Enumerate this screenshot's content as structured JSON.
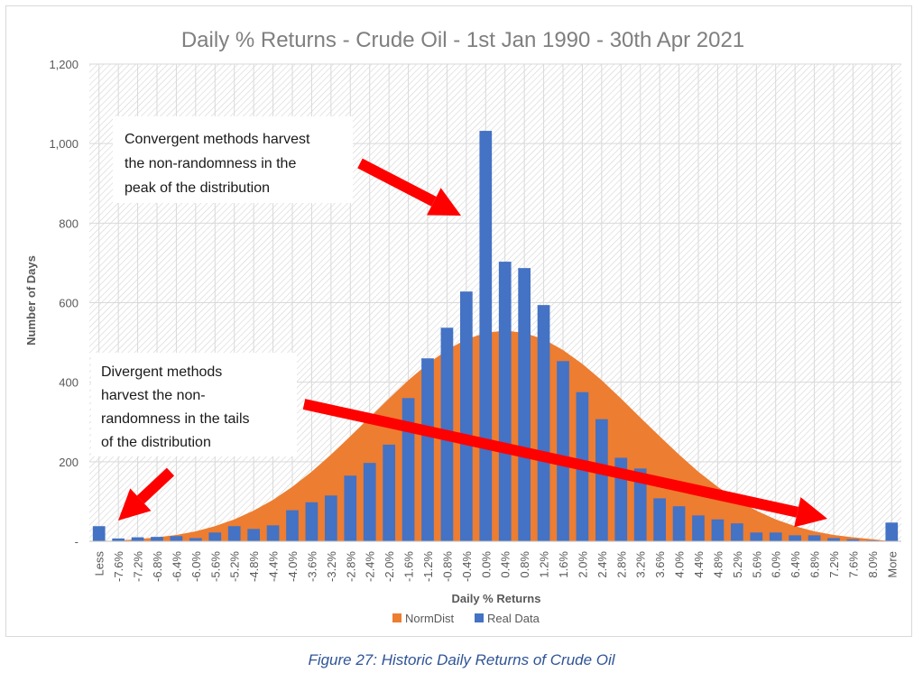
{
  "caption": "Figure 27: Historic Daily Returns of Crude Oil",
  "chart_data": {
    "type": "bar",
    "title": "Daily % Returns - Crude Oil  - 1st Jan 1990 - 30th Apr 2021",
    "xlabel": "Daily % Returns",
    "ylabel": "Number of Days",
    "ylim": [
      0,
      1200
    ],
    "yticks": [
      "-",
      "200",
      "400",
      "600",
      "800",
      "1,000",
      "1,200"
    ],
    "grid": true,
    "legend_position": "bottom",
    "categories": [
      "Less",
      "-7.6%",
      "-7.2%",
      "-6.8%",
      "-6.4%",
      "-6.0%",
      "-5.6%",
      "-5.2%",
      "-4.8%",
      "-4.4%",
      "-4.0%",
      "-3.6%",
      "-3.2%",
      "-2.8%",
      "-2.4%",
      "-2.0%",
      "-1.6%",
      "-1.2%",
      "-0.8%",
      "-0.4%",
      "0.0%",
      "0.4%",
      "0.8%",
      "1.2%",
      "1.6%",
      "2.0%",
      "2.4%",
      "2.8%",
      "3.2%",
      "3.6%",
      "4.0%",
      "4.4%",
      "4.8%",
      "5.2%",
      "5.6%",
      "6.0%",
      "6.4%",
      "6.8%",
      "7.2%",
      "7.6%",
      "8.0%",
      "More"
    ],
    "series": [
      {
        "name": "NormDist",
        "kind": "area",
        "color": "#ed7d31",
        "values": [
          0,
          2,
          5,
          10,
          16,
          25,
          38,
          55,
          77,
          104,
          137,
          175,
          218,
          264,
          311,
          359,
          405,
          446,
          481,
          508,
          524,
          530,
          524,
          508,
          481,
          446,
          405,
          359,
          311,
          264,
          218,
          175,
          137,
          104,
          77,
          55,
          38,
          25,
          16,
          10,
          5,
          0
        ]
      },
      {
        "name": "Real Data",
        "kind": "bar",
        "color": "#4472c4",
        "values": [
          38,
          7,
          10,
          11,
          13,
          8,
          22,
          38,
          31,
          40,
          78,
          98,
          115,
          165,
          197,
          243,
          360,
          460,
          537,
          628,
          1032,
          703,
          687,
          594,
          453,
          375,
          307,
          210,
          183,
          108,
          88,
          65,
          55,
          45,
          22,
          22,
          15,
          15,
          8,
          5,
          2,
          47
        ]
      }
    ],
    "annotations": [
      {
        "name": "convergent",
        "text": "Convergent methods harvest the non-randomness in the peak of the distribution",
        "lines": [
          "Convergent methods harvest",
          "the non-randomness in the",
          "peak of the distribution"
        ]
      },
      {
        "name": "divergent",
        "text": "Divergent methods harvest the non-randomness in the tails of the distribution",
        "lines": [
          "Divergent methods",
          "harvest the non-",
          "randomness in the tails",
          "of the distribution"
        ]
      }
    ]
  }
}
